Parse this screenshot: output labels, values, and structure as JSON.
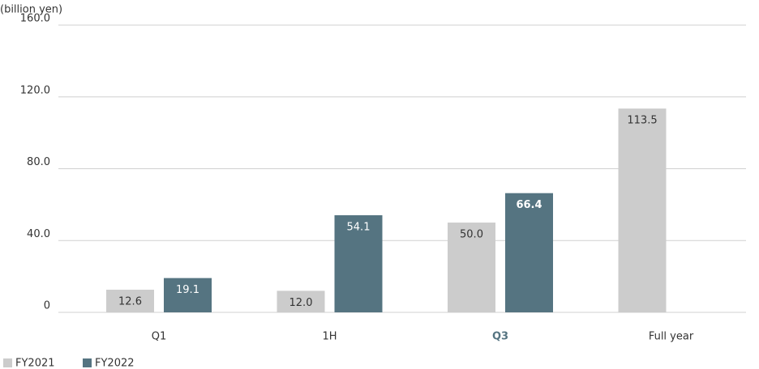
{
  "chart_data": {
    "type": "bar",
    "y_label": "(billion yen)",
    "categories": [
      "Q1",
      "1H",
      "Q3",
      "Full year"
    ],
    "highlight_category": 2,
    "highlight_color": "#557481",
    "series": [
      {
        "name": "FY2021",
        "color": "#cccccc",
        "label_color": "#333333",
        "values": [
          12.6,
          12.0,
          50.0,
          113.5
        ],
        "value_labels": [
          "12.6",
          "12.0",
          "50.0",
          "113.5"
        ]
      },
      {
        "name": "FY2022",
        "color": "#557481",
        "label_color": "#ffffff",
        "values": [
          19.1,
          54.1,
          66.4,
          null
        ],
        "value_labels": [
          "19.1",
          "54.1",
          "66.4",
          null
        ]
      }
    ],
    "ylim": [
      0,
      160
    ],
    "yticks": [
      0,
      {
        "value": 40,
        "label": "40.0"
      },
      {
        "value": 80,
        "label": "80.0"
      },
      {
        "value": 120,
        "label": "120.0"
      },
      {
        "value": 160,
        "label": "160.0"
      }
    ],
    "grid": true
  }
}
